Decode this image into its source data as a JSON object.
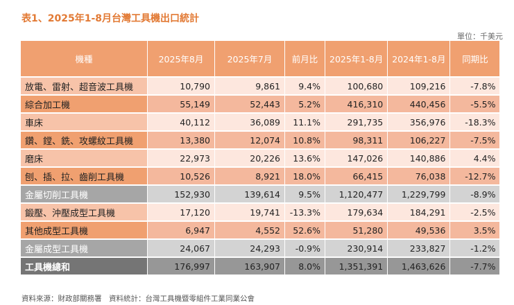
{
  "title": "表1、2025年1-8月台灣工具機出口統計",
  "unit": "單位：千美元",
  "headers": [
    "機種",
    "2025年8月",
    "2025年7月",
    "前月比",
    "2025年1-8月",
    "2024年1-8月",
    "同期比"
  ],
  "rows": [
    {
      "name": "放電、雷射、超音波工具機",
      "cells": [
        "10,790",
        "9,861",
        "9.4%",
        "100,680",
        "109,216",
        "-7.8%"
      ]
    },
    {
      "name": "綜合加工機",
      "cells": [
        "55,149",
        "52,443",
        "5.2%",
        "416,310",
        "440,456",
        "-5.5%"
      ]
    },
    {
      "name": "車床",
      "cells": [
        "40,112",
        "36,089",
        "11.1%",
        "291,735",
        "356,976",
        "-18.3%"
      ]
    },
    {
      "name": "鑽、鏜、銑、攻螺紋工具機",
      "cells": [
        "13,380",
        "12,074",
        "10.8%",
        "98,311",
        "106,227",
        "-7.5%"
      ]
    },
    {
      "name": "磨床",
      "cells": [
        "22,973",
        "20,226",
        "13.6%",
        "147,026",
        "140,886",
        "4.4%"
      ]
    },
    {
      "name": "刨、插、拉、齒削工具機",
      "cells": [
        "10,526",
        "8,921",
        "18.0%",
        "66,415",
        "76,038",
        "-12.7%"
      ]
    },
    {
      "name": "金屬切削工具機",
      "cells": [
        "152,930",
        "139,614",
        "9.5%",
        "1,120,477",
        "1,229,799",
        "-8.9%"
      ]
    },
    {
      "name": "鍛壓、沖壓成型工具機",
      "cells": [
        "17,120",
        "19,741",
        "-13.3%",
        "179,634",
        "184,291",
        "-2.5%"
      ]
    },
    {
      "name": "其他成型工具機",
      "cells": [
        "6,947",
        "4,552",
        "52.6%",
        "51,280",
        "49,536",
        "3.5%"
      ]
    },
    {
      "name": "金屬成型工具機",
      "cells": [
        "24,067",
        "24,293",
        "-0.9%",
        "230,914",
        "233,827",
        "-1.2%"
      ]
    },
    {
      "name": "工具機總和",
      "cells": [
        "176,997",
        "163,907",
        "8.0%",
        "1,351,391",
        "1,463,626",
        "-7.7%"
      ]
    }
  ],
  "source": "資料來源：財政部關務署　資料統計：台灣工具機暨零組件工業同業公會"
}
